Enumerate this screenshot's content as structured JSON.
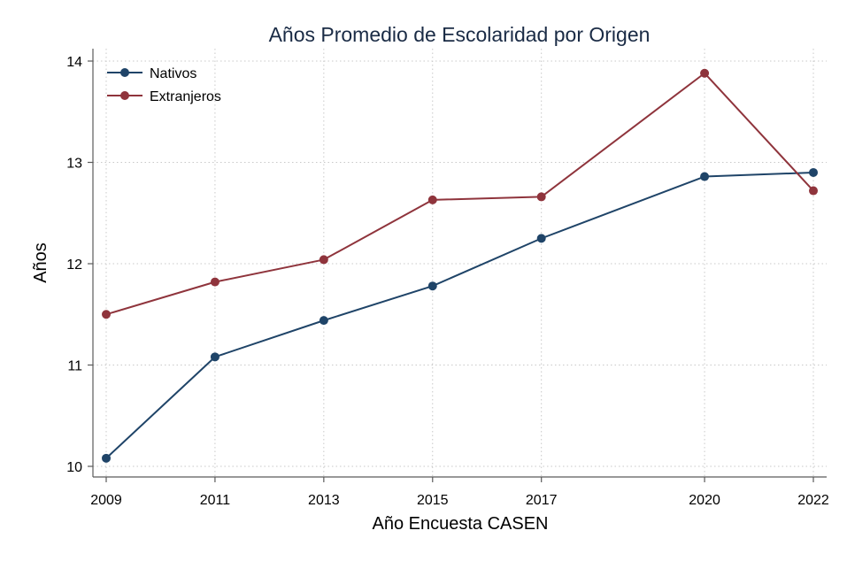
{
  "chart_data": {
    "type": "line",
    "title": "Años Promedio de Escolaridad por Origen",
    "xlabel": "Año Encuesta CASEN",
    "ylabel": "Años",
    "x": [
      2009,
      2011,
      2013,
      2015,
      2017,
      2020,
      2022
    ],
    "x_tick_labels": [
      "2009",
      "2011",
      "2013",
      "2015",
      "2017",
      "2020",
      "2022"
    ],
    "y_ticks": [
      10,
      11,
      12,
      13,
      14
    ],
    "y_tick_labels": [
      "10",
      "11",
      "12",
      "13",
      "14"
    ],
    "xlim": [
      2009,
      2022
    ],
    "ylim": [
      9.9,
      14.1
    ],
    "grid": true,
    "legend_position": "top-left",
    "series": [
      {
        "name": "Nativos",
        "color": "#1f4468",
        "values": [
          10.08,
          11.08,
          11.44,
          11.78,
          12.25,
          12.86,
          12.9
        ]
      },
      {
        "name": "Extranjeros",
        "color": "#8f343c",
        "values": [
          11.5,
          11.82,
          12.04,
          12.63,
          12.66,
          13.88,
          12.72
        ]
      }
    ]
  }
}
